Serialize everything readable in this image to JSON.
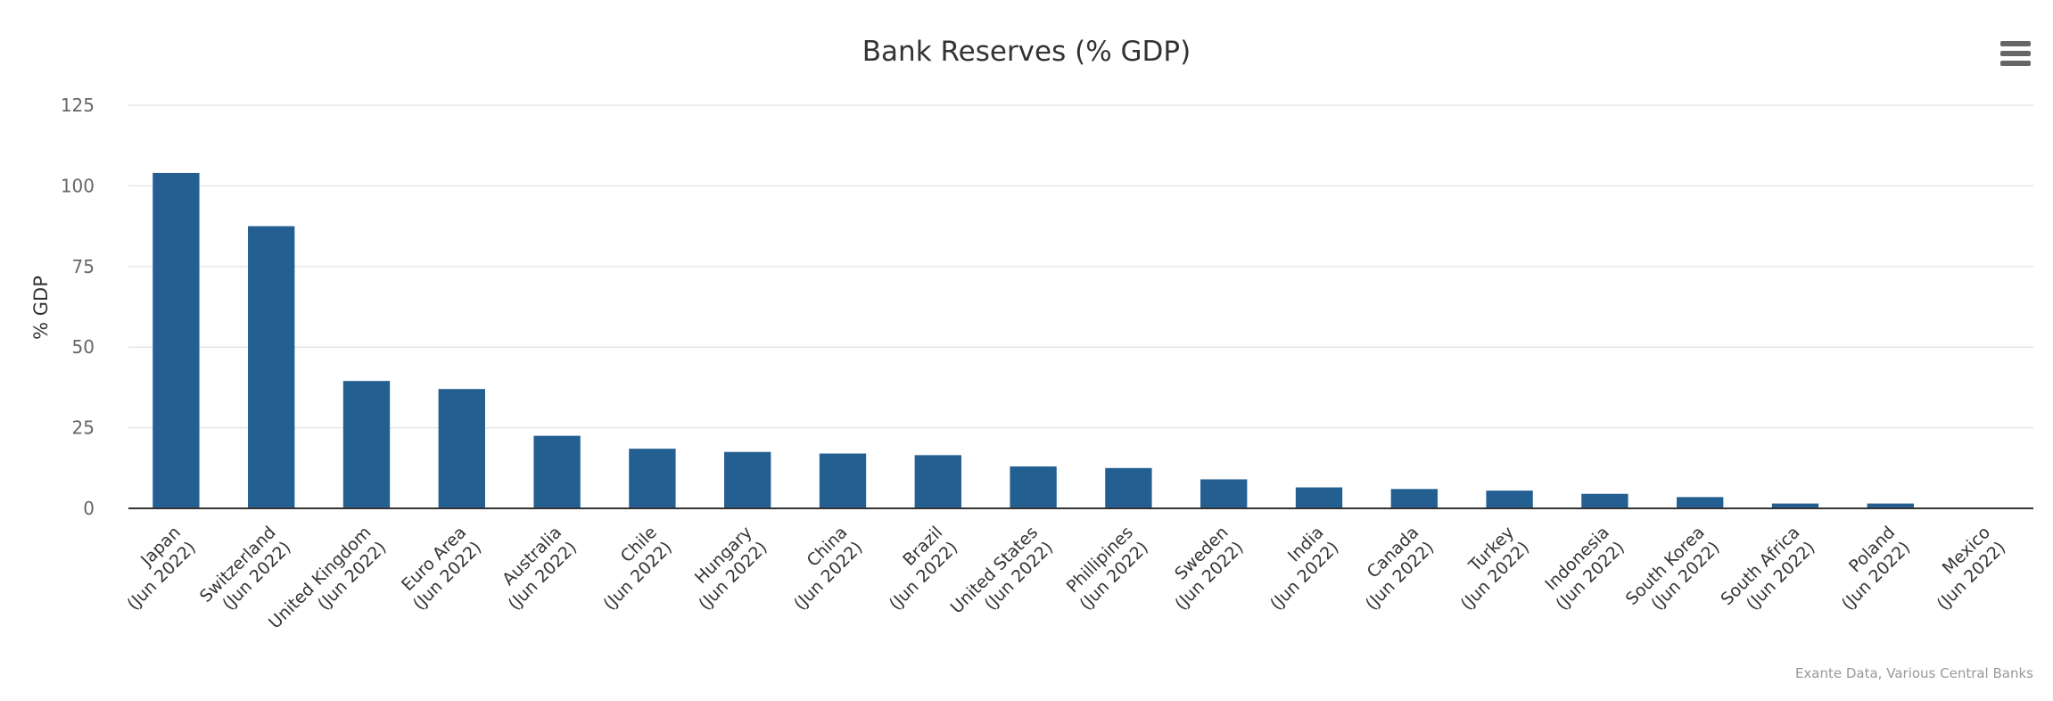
{
  "chart_data": {
    "type": "bar",
    "title": "Bank Reserves (% GDP)",
    "ylabel": "% GDP",
    "xlabel": "",
    "ylim": [
      0,
      125
    ],
    "yticks": [
      0,
      25,
      50,
      75,
      100,
      125
    ],
    "grid": true,
    "legend": "none",
    "bar_color": "#245f92",
    "categories": [
      [
        "Japan",
        "(Jun 2022)"
      ],
      [
        "Switzerland",
        "(Jun 2022)"
      ],
      [
        "United Kingdom",
        "(Jun 2022)"
      ],
      [
        "Euro Area",
        "(Jun 2022)"
      ],
      [
        "Australia",
        "(Jun 2022)"
      ],
      [
        "Chile",
        "(Jun 2022)"
      ],
      [
        "Hungary",
        "(Jun 2022)"
      ],
      [
        "China",
        "(Jun 2022)"
      ],
      [
        "Brazil",
        "(Jun 2022)"
      ],
      [
        "United States",
        "(Jun 2022)"
      ],
      [
        "Phillipines",
        "(Jun 2022)"
      ],
      [
        "Sweden",
        "(Jun 2022)"
      ],
      [
        "India",
        "(Jun 2022)"
      ],
      [
        "Canada",
        "(Jun 2022)"
      ],
      [
        "Turkey",
        "(Jun 2022)"
      ],
      [
        "Indonesia",
        "(Jun 2022)"
      ],
      [
        "South Korea",
        "(Jun 2022)"
      ],
      [
        "South Africa",
        "(Jun 2022)"
      ],
      [
        "Poland",
        "(Jun 2022)"
      ],
      [
        "Mexico",
        "(Jun 2022)"
      ]
    ],
    "values": [
      104,
      87.5,
      39.5,
      37,
      22.5,
      18.5,
      17.5,
      17,
      16.5,
      13,
      12.5,
      9,
      6.5,
      6,
      5.5,
      4.5,
      3.5,
      1.5,
      1.5,
      0
    ],
    "credits": "Exante Data, Various Central Banks"
  },
  "menu_icon": "hamburger-menu-icon"
}
